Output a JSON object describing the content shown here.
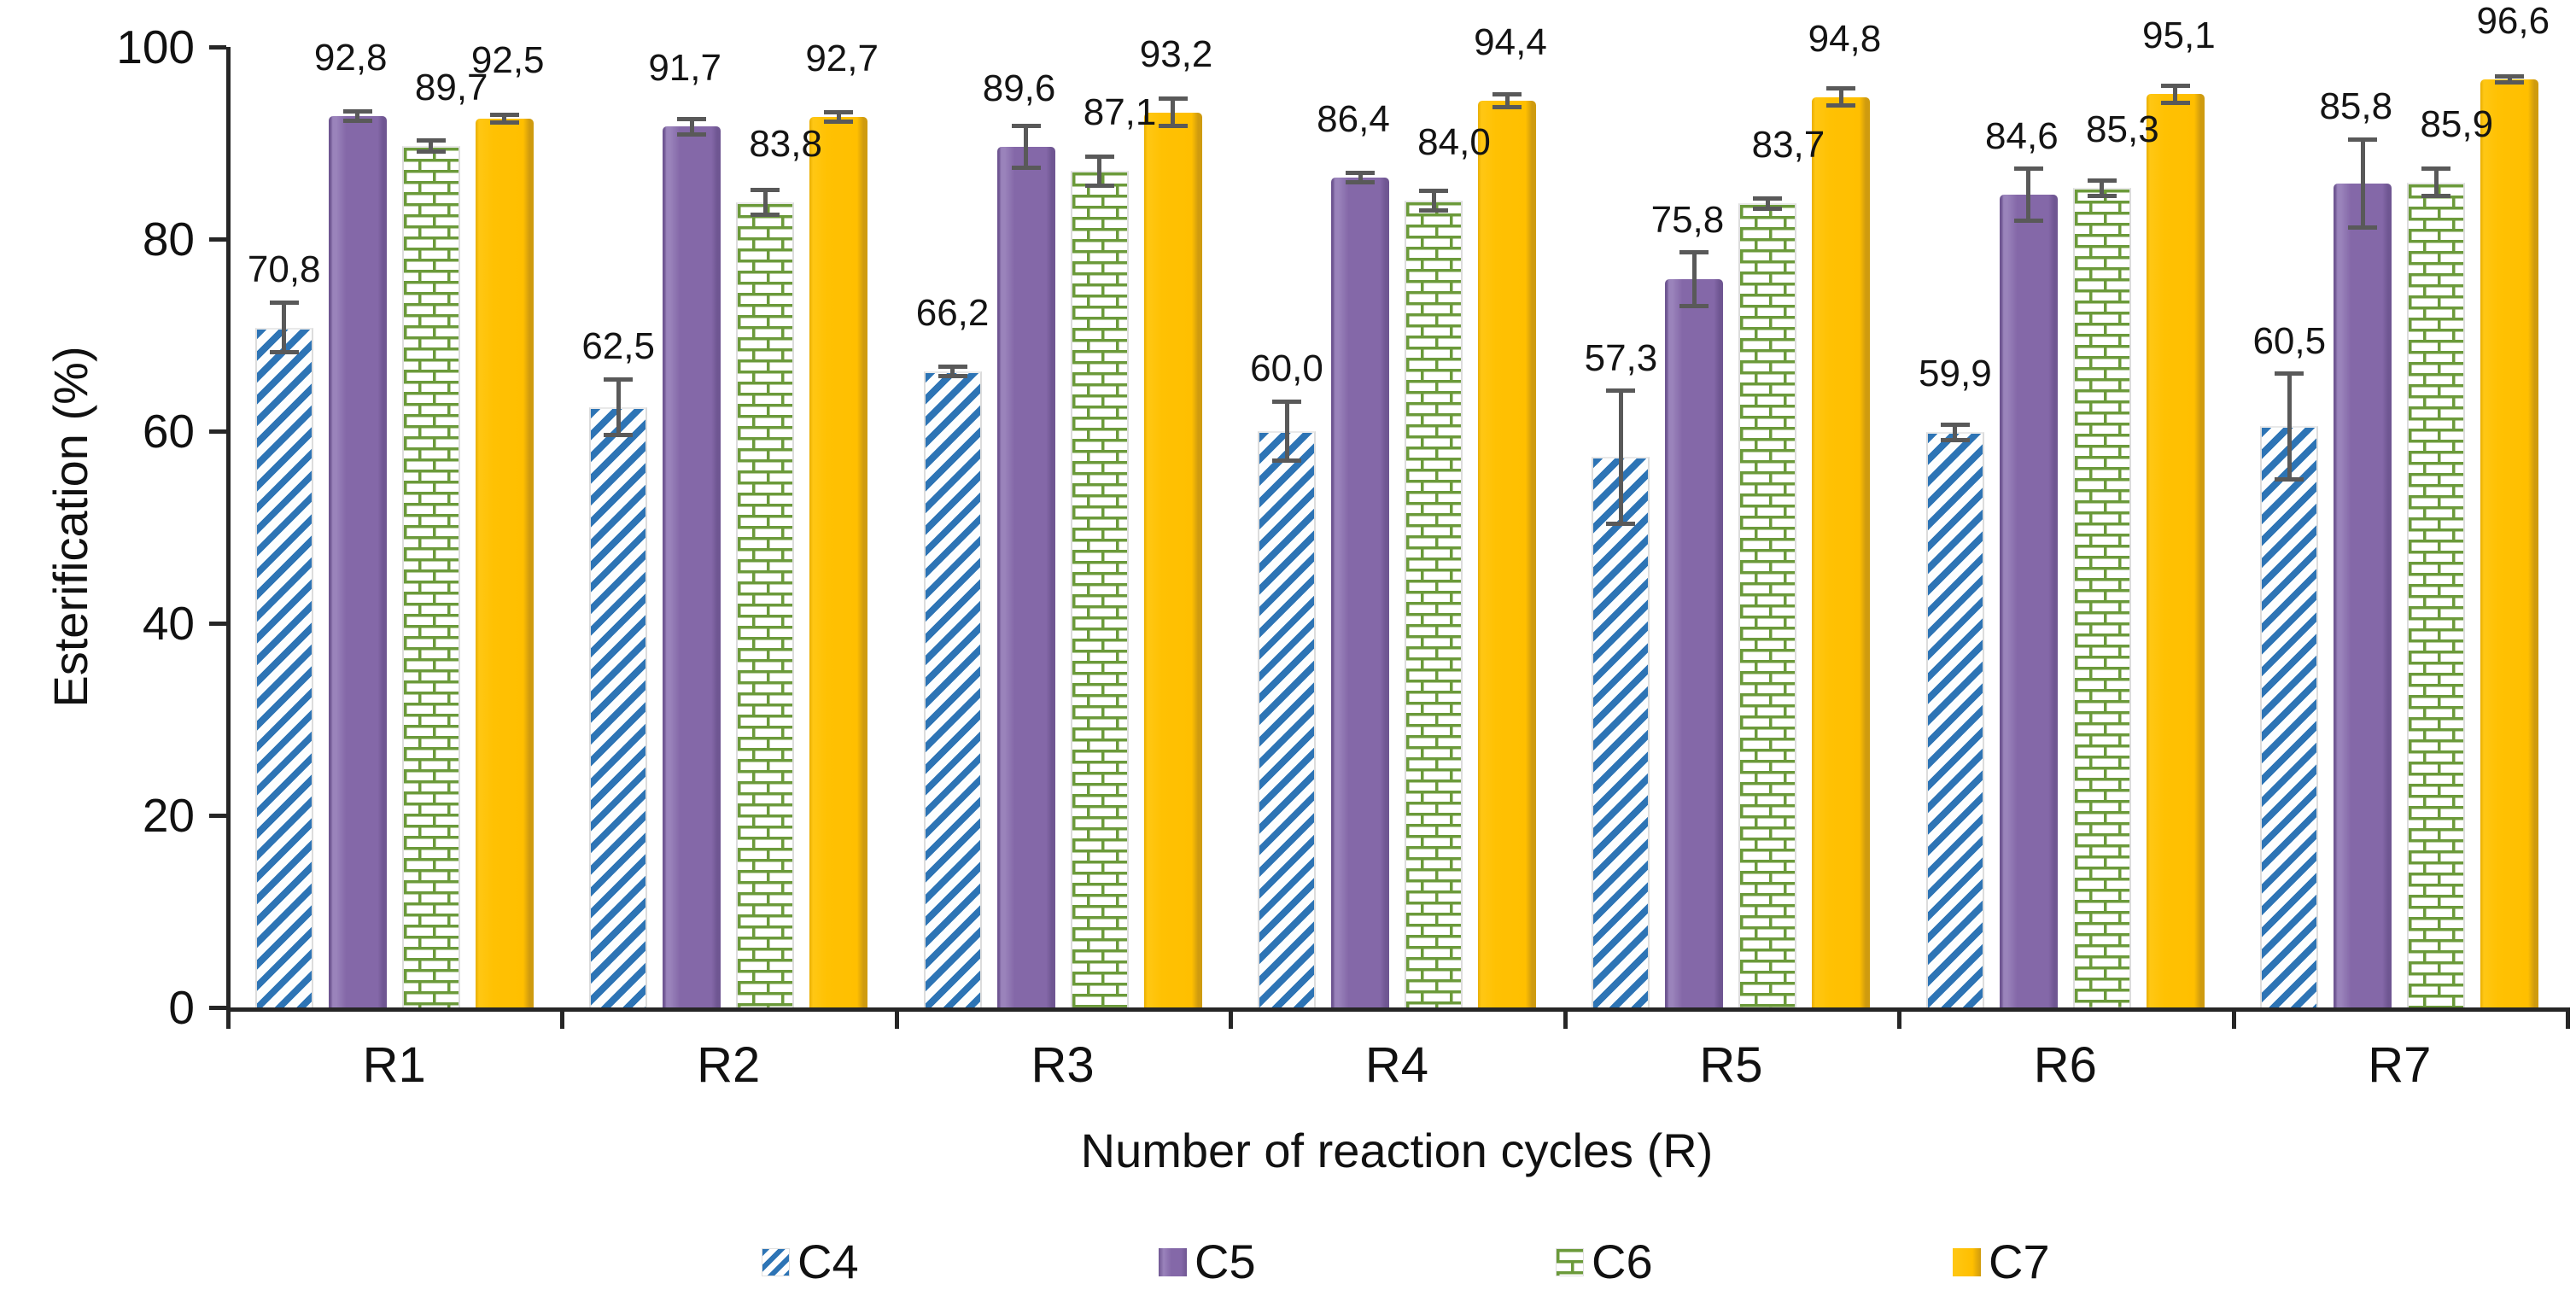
{
  "chart_data": {
    "type": "bar",
    "title": "",
    "xlabel": "Number of reaction cycles (R)",
    "ylabel": "Esterification (%)",
    "ylim": [
      0,
      100
    ],
    "yticks": [
      0,
      20,
      40,
      60,
      80,
      100
    ],
    "grid": false,
    "legend_position": "bottom",
    "decimal_separator": ",",
    "categories": [
      "R1",
      "R2",
      "R3",
      "R4",
      "R5",
      "R6",
      "R7"
    ],
    "series": [
      {
        "name": "C4",
        "pattern": "blue-diagonal-hatch",
        "color": "#2D74B5",
        "values": [
          70.8,
          62.5,
          66.2,
          60.0,
          57.3,
          59.9,
          60.5
        ],
        "labels": [
          "70,8",
          "62,5",
          "66,2",
          "60,0",
          "57,3",
          "59,9",
          "60,5"
        ],
        "errors": [
          2.6,
          2.9,
          0.5,
          3.1,
          6.9,
          0.8,
          5.5
        ]
      },
      {
        "name": "C5",
        "pattern": "solid-purple",
        "color": "#8468A8",
        "values": [
          92.8,
          91.7,
          89.6,
          86.4,
          75.8,
          84.6,
          85.8
        ],
        "labels": [
          "92,8",
          "91,7",
          "89,6",
          "86,4",
          "75,8",
          "84,6",
          "85,8"
        ],
        "errors": [
          0.5,
          0.8,
          2.2,
          0.5,
          2.8,
          2.7,
          4.6
        ]
      },
      {
        "name": "C6",
        "pattern": "green-brick-hatch",
        "color": "#6B9A3A",
        "values": [
          89.7,
          83.8,
          87.1,
          84.0,
          83.7,
          85.3,
          85.9
        ],
        "labels": [
          "89,7",
          "83,8",
          "87,1",
          "84,0",
          "83,7",
          "85,3",
          "85,9"
        ],
        "errors": [
          0.6,
          1.3,
          1.5,
          1.0,
          0.5,
          0.8,
          1.4
        ]
      },
      {
        "name": "C7",
        "pattern": "solid-orange",
        "color": "#FFBF00",
        "values": [
          92.5,
          92.7,
          93.2,
          94.4,
          94.8,
          95.1,
          96.6
        ],
        "labels": [
          "92,5",
          "92,7",
          "93,2",
          "94,4",
          "94,8",
          "95,1",
          "96,6"
        ],
        "errors": [
          0.4,
          0.5,
          1.4,
          0.7,
          0.9,
          0.9,
          0.3
        ]
      }
    ],
    "error_bar_color": "#595959",
    "axis_color": "#262626"
  }
}
